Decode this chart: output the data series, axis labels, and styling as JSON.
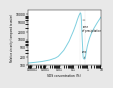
{
  "title": "",
  "xlabel": "SDS concentration (%)",
  "ylabel": "Relative viscosity (compared to water)",
  "xscale": "log",
  "yscale": "log",
  "xlim": [
    5e-05,
    10
  ],
  "ylim": [
    100,
    15000
  ],
  "yticks": [
    100,
    200,
    500,
    1000,
    2000,
    5000,
    10000
  ],
  "ytick_labels": [
    "100",
    "200",
    "500",
    "1000",
    "2000",
    "5000",
    "10000"
  ],
  "xticks": [
    0.0001,
    0.001,
    0.01,
    0.1,
    1,
    10
  ],
  "xtick_labels": [
    "0.0001",
    "0.001",
    "0.01",
    "0.1",
    "1",
    "10"
  ],
  "curve_color": "#7ecfdf",
  "bg_color": "#ffffff",
  "fig_bg_color": "#e8e8e8",
  "annotation_zone": "zone\nof precipitation",
  "annotation_cmc": "cmc",
  "curve_x": [
    5e-05,
    0.0001,
    0.0002,
    0.0005,
    0.001,
    0.002,
    0.005,
    0.008,
    0.01,
    0.02,
    0.03,
    0.05,
    0.07,
    0.1,
    0.15,
    0.2,
    0.25,
    0.3,
    0.32,
    0.34,
    0.36,
    0.38,
    0.4,
    0.42,
    0.45,
    0.48,
    0.5,
    0.52,
    0.55,
    0.58,
    0.6,
    0.65,
    0.7,
    0.75,
    0.8,
    0.9,
    1.0,
    1.2,
    1.5,
    2.0,
    3.0,
    5.0,
    7.0,
    10.0
  ],
  "curve_y": [
    120,
    125,
    130,
    138,
    148,
    160,
    190,
    220,
    250,
    380,
    550,
    900,
    1400,
    2200,
    4000,
    6500,
    9000,
    11000,
    11500,
    11000,
    9000,
    6000,
    3000,
    1500,
    700,
    350,
    220,
    190,
    180,
    175,
    175,
    175,
    180,
    220,
    280,
    400,
    550,
    800,
    1200,
    1800,
    2800,
    4500,
    6000,
    8000
  ]
}
